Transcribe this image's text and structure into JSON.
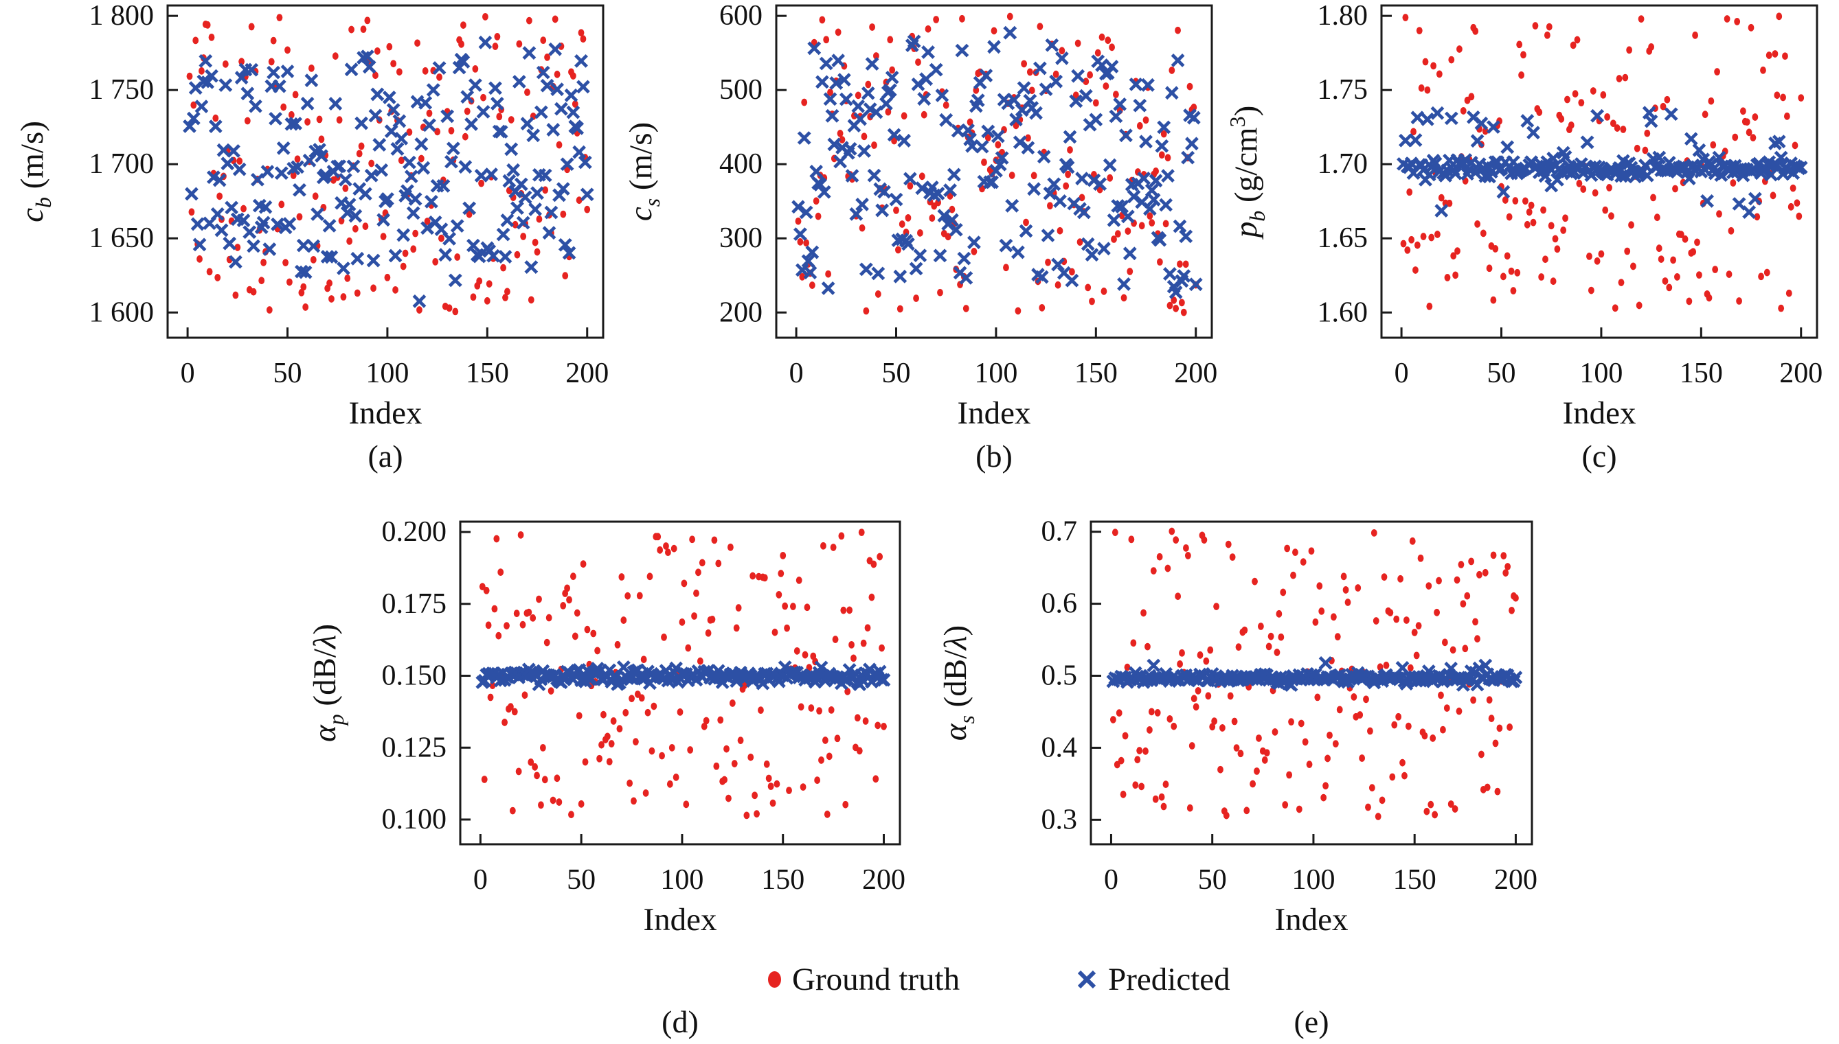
{
  "figure": {
    "background": "#ffffff",
    "frame_color": "#1a1a1a",
    "description": "Five scatter subplots comparing ground-truth and predicted geoacoustic parameters versus sample index"
  },
  "legend": {
    "items": [
      {
        "label": "Ground truth",
        "marker": "circle",
        "color": "#e62320"
      },
      {
        "label": "Predicted",
        "marker": "x",
        "color": "#2d50a5"
      }
    ]
  },
  "chart_data": [
    {
      "id": "a",
      "caption": "(a)",
      "type": "scatter",
      "grid": false,
      "xlabel": "Index",
      "ylabel_plain": "c_b (m/s)",
      "ylabel_segments": [
        {
          "text": "c",
          "kind": "italic"
        },
        {
          "text": "b",
          "kind": "sub"
        },
        {
          "text": " (m/s)",
          "kind": "normal"
        }
      ],
      "n_points": 200,
      "xlim": [
        -10,
        208
      ],
      "ylim": [
        1583,
        1807
      ],
      "xticks": {
        "values": [
          0,
          50,
          100,
          150,
          200
        ],
        "labels": [
          "0",
          "50",
          "100",
          "150",
          "200"
        ]
      },
      "yticks": {
        "values": [
          1600,
          1650,
          1700,
          1750,
          1800
        ],
        "labels": [
          "1 600",
          "1 650",
          "1 700",
          "1 750",
          "1 800"
        ]
      },
      "series": [
        {
          "name": "Ground truth",
          "marker": "circle",
          "color": "#e62320",
          "seed": 3,
          "dist": {
            "type": "uniform",
            "min": 1600,
            "max": 1800
          }
        },
        {
          "name": "Predicted",
          "marker": "x",
          "color": "#2d50a5",
          "seed": 7,
          "dist": {
            "type": "affine_of_series0",
            "scale": 0.7,
            "offset": 510,
            "noise_sd": 12
          }
        }
      ]
    },
    {
      "id": "b",
      "caption": "(b)",
      "type": "scatter",
      "grid": false,
      "xlabel": "Index",
      "ylabel_plain": "c_s (m/s)",
      "ylabel_segments": [
        {
          "text": "c",
          "kind": "italic"
        },
        {
          "text": "s",
          "kind": "sub"
        },
        {
          "text": " (m/s)",
          "kind": "normal"
        }
      ],
      "n_points": 200,
      "xlim": [
        -10,
        208
      ],
      "ylim": [
        166,
        614
      ],
      "xticks": {
        "values": [
          0,
          50,
          100,
          150,
          200
        ],
        "labels": [
          "0",
          "50",
          "100",
          "150",
          "200"
        ]
      },
      "yticks": {
        "values": [
          200,
          300,
          400,
          500,
          600
        ],
        "labels": [
          "200",
          "300",
          "400",
          "500",
          "600"
        ]
      },
      "series": [
        {
          "name": "Ground truth",
          "marker": "circle",
          "color": "#e62320",
          "seed": 11,
          "dist": {
            "type": "uniform",
            "min": 200,
            "max": 600
          }
        },
        {
          "name": "Predicted",
          "marker": "x",
          "color": "#2d50a5",
          "seed": 13,
          "dist": {
            "type": "affine_of_series0",
            "scale": 0.8,
            "offset": 80,
            "noise_sd": 20
          }
        }
      ]
    },
    {
      "id": "c",
      "caption": "(c)",
      "type": "scatter",
      "grid": false,
      "xlabel": "Index",
      "ylabel_plain": "p_b (g/cm3)",
      "ylabel_segments": [
        {
          "text": "p",
          "kind": "italic"
        },
        {
          "text": "b",
          "kind": "sub"
        },
        {
          "text": " (g/cm",
          "kind": "normal"
        },
        {
          "text": "3",
          "kind": "sup"
        },
        {
          "text": ")",
          "kind": "normal"
        }
      ],
      "n_points": 200,
      "xlim": [
        -10,
        208
      ],
      "ylim": [
        1.583,
        1.807
      ],
      "xticks": {
        "values": [
          0,
          50,
          100,
          150,
          200
        ],
        "labels": [
          "0",
          "50",
          "100",
          "150",
          "200"
        ]
      },
      "yticks": {
        "values": [
          1.6,
          1.65,
          1.7,
          1.75,
          1.8
        ],
        "labels": [
          "1.60",
          "1.65",
          "1.70",
          "1.75",
          "1.80"
        ]
      },
      "series": [
        {
          "name": "Ground truth",
          "marker": "circle",
          "color": "#e62320",
          "seed": 21,
          "dist": {
            "type": "uniform",
            "min": 1.6,
            "max": 1.8
          }
        },
        {
          "name": "Predicted",
          "marker": "x",
          "color": "#2d50a5",
          "seed": 23,
          "dist": {
            "type": "band",
            "center": 1.697,
            "noise_sd": 0.003,
            "up_frac": 0.17,
            "up_min": 0.008,
            "up_max": 0.04,
            "down_frac": 0.03,
            "down_min": 0.008,
            "down_max": 0.03
          }
        }
      ]
    },
    {
      "id": "d",
      "caption": "(d)",
      "type": "scatter",
      "grid": false,
      "xlabel": "Index",
      "ylabel_plain": "alpha_p (dB/lambda)",
      "ylabel_segments": [
        {
          "text": "α",
          "kind": "italic"
        },
        {
          "text": "p",
          "kind": "sub"
        },
        {
          "text": " (dB/",
          "kind": "normal"
        },
        {
          "text": "λ",
          "kind": "italic"
        },
        {
          "text": ")",
          "kind": "normal"
        }
      ],
      "n_points": 200,
      "xlim": [
        -10,
        208
      ],
      "ylim": [
        0.0914,
        0.2036
      ],
      "xticks": {
        "values": [
          0,
          50,
          100,
          150,
          200
        ],
        "labels": [
          "0",
          "50",
          "100",
          "150",
          "200"
        ]
      },
      "yticks": {
        "values": [
          0.1,
          0.125,
          0.15,
          0.175,
          0.2
        ],
        "labels": [
          "0.100",
          "0.125",
          "0.150",
          "0.175",
          "0.200"
        ]
      },
      "series": [
        {
          "name": "Ground truth",
          "marker": "circle",
          "color": "#e62320",
          "seed": 31,
          "dist": {
            "type": "uniform",
            "min": 0.1,
            "max": 0.2
          }
        },
        {
          "name": "Predicted",
          "marker": "x",
          "color": "#2d50a5",
          "seed": 37,
          "dist": {
            "type": "band",
            "center": 0.15,
            "noise_sd": 0.0012,
            "up_frac": 0.0,
            "up_min": 0,
            "up_max": 0,
            "down_frac": 0.0,
            "down_min": 0,
            "down_max": 0
          }
        }
      ]
    },
    {
      "id": "e",
      "caption": "(e)",
      "type": "scatter",
      "grid": false,
      "xlabel": "Index",
      "ylabel_plain": "alpha_s (dB/lambda)",
      "ylabel_segments": [
        {
          "text": "α",
          "kind": "italic"
        },
        {
          "text": "s",
          "kind": "sub"
        },
        {
          "text": " (dB/",
          "kind": "normal"
        },
        {
          "text": "λ",
          "kind": "italic"
        },
        {
          "text": ")",
          "kind": "normal"
        }
      ],
      "n_points": 200,
      "xlim": [
        -10,
        208
      ],
      "ylim": [
        0.266,
        0.714
      ],
      "xticks": {
        "values": [
          0,
          50,
          100,
          150,
          200
        ],
        "labels": [
          "0",
          "50",
          "100",
          "150",
          "200"
        ]
      },
      "yticks": {
        "values": [
          0.3,
          0.4,
          0.5,
          0.6,
          0.7
        ],
        "labels": [
          "0.3",
          "0.4",
          "0.5",
          "0.6",
          "0.7"
        ]
      },
      "series": [
        {
          "name": "Ground truth",
          "marker": "circle",
          "color": "#e62320",
          "seed": 41,
          "dist": {
            "type": "uniform",
            "min": 0.3,
            "max": 0.707
          }
        },
        {
          "name": "Predicted",
          "marker": "x",
          "color": "#2d50a5",
          "seed": 43,
          "dist": {
            "type": "band",
            "center": 0.496,
            "noise_sd": 0.0035,
            "up_frac": 0.06,
            "up_min": 0.004,
            "up_max": 0.02,
            "down_frac": 0.02,
            "down_min": 0.004,
            "down_max": 0.01
          }
        }
      ]
    }
  ]
}
